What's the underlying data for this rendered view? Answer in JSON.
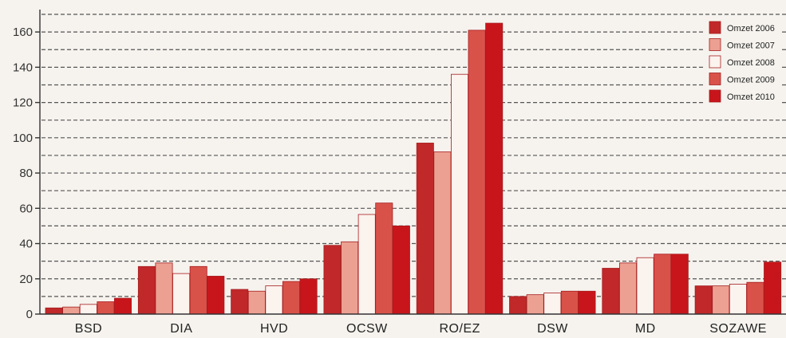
{
  "chart_data": {
    "type": "bar",
    "title": "",
    "xlabel": "",
    "ylabel": "",
    "ylim": [
      0,
      170
    ],
    "yticks": [
      0,
      20,
      40,
      60,
      80,
      100,
      120,
      140,
      160
    ],
    "grid": true,
    "legend_position": "top-right",
    "categories": [
      "BSD",
      "DIA",
      "HVD",
      "OCSW",
      "RO/EZ",
      "DSW",
      "MD",
      "SOZAWE"
    ],
    "series": [
      {
        "name": "Omzet 2006",
        "color": "#c0282a",
        "values": [
          3.5,
          27,
          14,
          39,
          97,
          10,
          26,
          16
        ]
      },
      {
        "name": "Omzet 2007",
        "color": "#eca092",
        "values": [
          4,
          29,
          13,
          41,
          92,
          11,
          29,
          16
        ]
      },
      {
        "name": "Omzet 2008",
        "color": "#fbf3ee",
        "values": [
          5.5,
          23,
          16,
          56.5,
          136,
          12,
          32,
          17
        ]
      },
      {
        "name": "Omzet 2009",
        "color": "#d9524a",
        "values": [
          7,
          27,
          18.5,
          63,
          161,
          13,
          34,
          18
        ]
      },
      {
        "name": "Omzet 2010",
        "color": "#c8151b",
        "values": [
          9,
          21.5,
          20,
          50,
          165,
          13,
          34,
          29.5
        ]
      }
    ]
  }
}
